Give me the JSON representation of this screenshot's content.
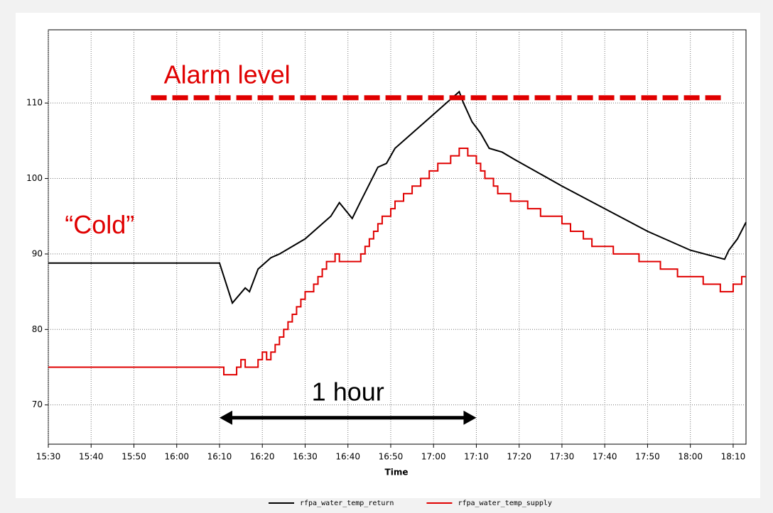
{
  "chart_data": {
    "type": "line",
    "x_label": "Time",
    "xlim": [
      "15:30",
      "18:13"
    ],
    "xticks": [
      "15:30",
      "15:40",
      "15:50",
      "16:00",
      "16:10",
      "16:20",
      "16:30",
      "16:40",
      "16:50",
      "17:00",
      "17:10",
      "17:20",
      "17:30",
      "17:40",
      "17:50",
      "18:00",
      "18:10"
    ],
    "ylim": [
      64.8,
      119.7
    ],
    "yticks": [
      70,
      80,
      90,
      100,
      110
    ],
    "grid": true,
    "legend": "bottom",
    "series": [
      {
        "name": "rfpa_water_temp_return",
        "color": "#000000",
        "step": false,
        "x": [
          "15:30",
          "16:10",
          "16:13",
          "16:16",
          "16:17",
          "16:19",
          "16:22",
          "16:24",
          "16:30",
          "16:36",
          "16:38",
          "16:41",
          "16:43",
          "16:47",
          "16:49",
          "16:51",
          "16:55",
          "16:59",
          "17:03",
          "17:06",
          "17:07",
          "17:09",
          "17:11",
          "17:13",
          "17:16",
          "17:19",
          "17:30",
          "17:40",
          "17:50",
          "18:00",
          "18:08",
          "18:09",
          "18:11",
          "18:13"
        ],
        "values": [
          88.8,
          88.8,
          83.5,
          85.5,
          85,
          88,
          89.5,
          90,
          92,
          95,
          96.8,
          94.7,
          97,
          101.5,
          102,
          104,
          106,
          108,
          110,
          111.5,
          110,
          107.5,
          106,
          104,
          103.5,
          102.5,
          99,
          96,
          93,
          90.5,
          89.3,
          90.5,
          92,
          94.2
        ]
      },
      {
        "name": "rfpa_water_temp_supply",
        "color": "#e00000",
        "step": true,
        "x": [
          "15:30",
          "16:11",
          "16:14",
          "16:15",
          "16:16",
          "16:19",
          "16:20",
          "16:21",
          "16:22",
          "16:23",
          "16:24",
          "16:25",
          "16:26",
          "16:27",
          "16:28",
          "16:29",
          "16:30",
          "16:32",
          "16:33",
          "16:34",
          "16:35",
          "16:37",
          "16:38",
          "16:43",
          "16:44",
          "16:45",
          "16:46",
          "16:47",
          "16:48",
          "16:50",
          "16:51",
          "16:53",
          "16:55",
          "16:57",
          "16:59",
          "17:01",
          "17:04",
          "17:06",
          "17:08",
          "17:10",
          "17:11",
          "17:12",
          "17:14",
          "17:15",
          "17:18",
          "17:22",
          "17:25",
          "17:30",
          "17:32",
          "17:35",
          "17:37",
          "17:42",
          "17:48",
          "17:53",
          "17:57",
          "18:03",
          "18:07",
          "18:10",
          "18:12",
          "18:13"
        ],
        "values": [
          75,
          74,
          75,
          76,
          75,
          76,
          77,
          76,
          77,
          78,
          79,
          80,
          81,
          82,
          83,
          84,
          85,
          86,
          87,
          88,
          89,
          90,
          89,
          90,
          91,
          92,
          93,
          94,
          95,
          96,
          97,
          98,
          99,
          100,
          101,
          102,
          103,
          104,
          103,
          102,
          101,
          100,
          99,
          98,
          97,
          96,
          95,
          94,
          93,
          92,
          91,
          90,
          89,
          88,
          87,
          86,
          85,
          86,
          87,
          87
        ]
      }
    ],
    "annotations": [
      {
        "text": "Alarm level",
        "color": "#e00000",
        "value": 110.7,
        "from": "15:54",
        "to": "18:08"
      },
      {
        "text": "“Cold”",
        "color": "#e00000",
        "x": "15:42",
        "y": 93.6
      },
      {
        "text": "1 hour",
        "color": "#000000",
        "from": "16:10",
        "to": "17:10",
        "y": 68.3
      }
    ]
  }
}
